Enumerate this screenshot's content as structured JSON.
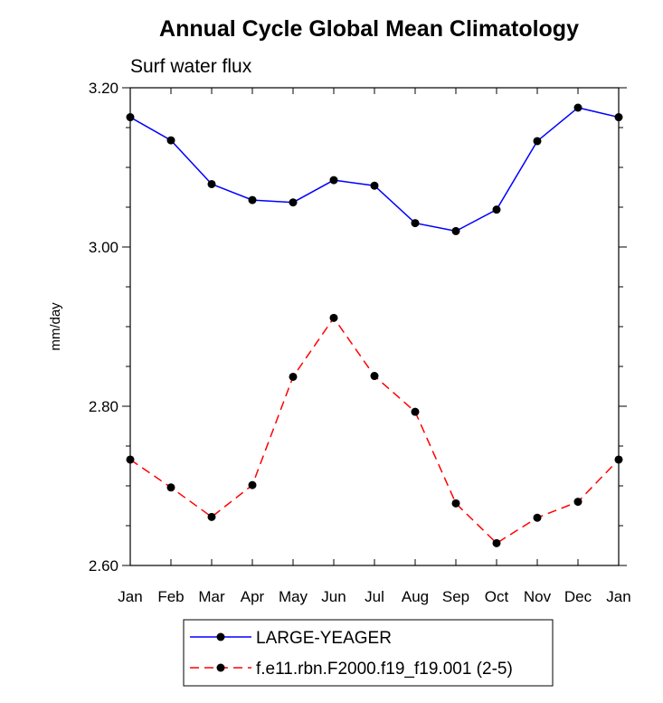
{
  "chart_data": {
    "type": "line",
    "title": "Annual Cycle Global Mean Climatology",
    "subtitle": "Surf water flux",
    "xlabel": "",
    "ylabel": "mm/day",
    "ylim": [
      2.6,
      3.2
    ],
    "yticks": [
      2.6,
      2.8,
      3.0,
      3.2
    ],
    "ytick_labels": [
      "2.60",
      "2.80",
      "3.00",
      "3.20"
    ],
    "categories": [
      "Jan",
      "Feb",
      "Mar",
      "Apr",
      "May",
      "Jun",
      "Jul",
      "Aug",
      "Sep",
      "Oct",
      "Nov",
      "Dec",
      "Jan"
    ],
    "grid": false,
    "legend_position": "bottom",
    "series": [
      {
        "name": "LARGE-YEAGER",
        "color": "#0000ff",
        "line_style": "solid",
        "marker": "filled-circle",
        "values": [
          3.163,
          3.134,
          3.079,
          3.059,
          3.056,
          3.084,
          3.077,
          3.03,
          3.02,
          3.047,
          3.133,
          3.175,
          3.163
        ]
      },
      {
        "name": "f.e11.rbn.F2000.f19_f19.001 (2-5)",
        "color": "#ff0000",
        "line_style": "dashed",
        "marker": "filled-circle",
        "values": [
          2.733,
          2.698,
          2.661,
          2.701,
          2.837,
          2.911,
          2.838,
          2.793,
          2.678,
          2.628,
          2.66,
          2.68,
          2.733
        ]
      }
    ]
  }
}
